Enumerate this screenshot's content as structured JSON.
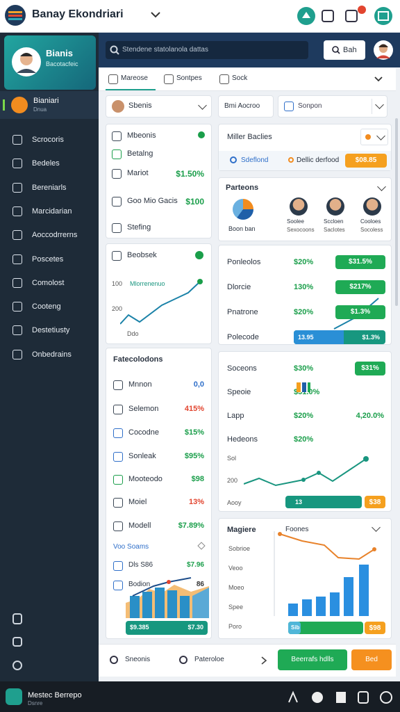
{
  "header": {
    "title": "Banay Ekondriari"
  },
  "profile": {
    "name": "Bianis",
    "subtitle": "Bacotacfeic"
  },
  "search": {
    "placeholder": "Stendene statolanola dattas",
    "button": "Bah"
  },
  "nav": {
    "active": {
      "label": "Bianiari",
      "sub": "Dnua"
    },
    "items": [
      "Scrocoris",
      "Bedeles",
      "Bereniarls",
      "Marcidarian",
      "Aoccodrrerns",
      "Poscetes",
      "Comolost",
      "Cooteng",
      "Destetiusty",
      "Onbedrains"
    ]
  },
  "tabs": [
    "Mareose",
    "Sontpes",
    "Sock"
  ],
  "left": {
    "select": "Sbenis",
    "list": [
      {
        "label": "Mbeonis"
      },
      {
        "label": "Betalng"
      },
      {
        "label": "Mariot",
        "value": "$1.50%"
      },
      {
        "label": "Goo Mio Gacis",
        "value": "$100"
      },
      {
        "label": "Stefing"
      }
    ],
    "trend": {
      "title": "Beobsek",
      "axis": [
        "100",
        "200",
        "Ddo"
      ],
      "legend": "Mlorrenenuo"
    },
    "metrics": {
      "title": "Fatecolodons",
      "rows": [
        {
          "label": "Mnnon",
          "value": "0,0",
          "color": "#2f6fc9"
        },
        {
          "label": "Selemon",
          "value": "415%",
          "color": "#e2452f"
        },
        {
          "label": "Cocodne",
          "value": "$15%",
          "color": "#1a9e4a"
        },
        {
          "label": "Sonleak",
          "value": "$95%",
          "color": "#1a9e4a"
        },
        {
          "label": "Mooteodo",
          "value": "$98",
          "color": "#1a9e4a"
        },
        {
          "label": "Moiel",
          "value": "13%",
          "color": "#e2452f"
        },
        {
          "label": "Modell",
          "value": "$7.89%",
          "color": "#1a9e4a"
        }
      ],
      "sub": {
        "title": "Voo Soams",
        "rows": [
          {
            "label": "Dls S86",
            "value": "$7.96"
          },
          {
            "label": "Bodion",
            "value": "86"
          }
        ],
        "footer": [
          "$9.385",
          "$7.30"
        ]
      }
    }
  },
  "right": {
    "chip": "Bmi Aocroo",
    "select": "Sonpon",
    "filter": {
      "title": "Miller Baclies",
      "tag": "Sdeflond",
      "text": "Dellic derfood",
      "badge": "$08.85"
    },
    "people": {
      "title": "Parteons",
      "chart_label": "Boon ban",
      "people": [
        {
          "name": "Soolee",
          "role": "Sexocoons"
        },
        {
          "name": "Sccloen",
          "role": "Saclotes"
        },
        {
          "name": "Cooloes",
          "role": "Socoless"
        }
      ]
    },
    "stats": [
      {
        "label": "Ponleolos",
        "value": "$20%",
        "badge": "$31.5%"
      },
      {
        "label": "Dlorcie",
        "value": "130%",
        "badge": "$217%"
      },
      {
        "label": "Pnatrone",
        "value": "$20%",
        "badge": "$1.3%"
      },
      {
        "label": "Polecode",
        "value": "13.95",
        "badge": "$1.3%"
      }
    ],
    "summary": {
      "rows": [
        {
          "label": "Soceons",
          "value": "$30%",
          "badge": "$31%"
        },
        {
          "label": "Speoie",
          "value": "$31.0%"
        },
        {
          "label": "Lapp",
          "value": "$20%",
          "extra": "4,20.0%"
        },
        {
          "label": "Hedeons",
          "value": "$20%"
        }
      ],
      "axis": [
        "Sol",
        "200",
        "Aooy"
      ],
      "footer": [
        "13",
        "$38"
      ]
    },
    "bars": {
      "title": "Magiere",
      "subtitle": "Foones",
      "labels": [
        "Sobrioe",
        "Veoo",
        "Moeo",
        "Spee",
        "Poro"
      ],
      "footer": [
        "Sib",
        "$98"
      ]
    }
  },
  "footer": {
    "links": [
      "Sneonis",
      "Pateroloe"
    ],
    "primary": "Beerrafs hdlls",
    "secondary": "Bed"
  },
  "dock": {
    "name": "Mestec Berrepo",
    "sub": "Dsnre"
  }
}
